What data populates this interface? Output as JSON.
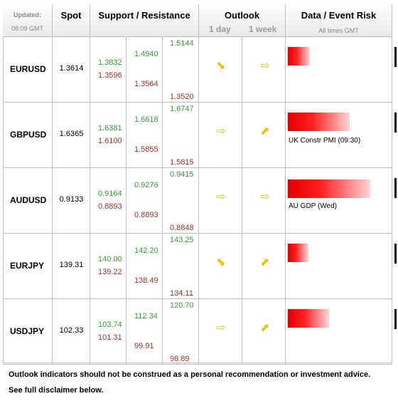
{
  "header": {
    "updated_label": "Updated:",
    "updated_time": "08:09 GMT",
    "spot": "Spot",
    "sr": "Support / Resistance",
    "outlook": "Outlook",
    "outlook_1d": "1 day",
    "outlook_1w": "1 week",
    "risk": "Data / Event Risk",
    "risk_sub": "All times GMT"
  },
  "rows": [
    {
      "pair": "EURUSD",
      "spot": "1.3614",
      "s1_hi": "1.3832",
      "s1_lo": "1.3596",
      "s2_hi": "1.4940",
      "s2_lo": "1.3564",
      "s3_hi": "1.5144",
      "s3_lo": "1.3520",
      "d1": "down-right-arrow",
      "w1": "right-arrow",
      "risk_level": 0.27,
      "risk_text": ""
    },
    {
      "pair": "GBPUSD",
      "spot": "1.6365",
      "s1_hi": "1.6381",
      "s1_lo": "1.6100",
      "s2_hi": "1.6618",
      "s2_lo": "1.5855",
      "s3_hi": "1.6747",
      "s3_lo": "1.5815",
      "d1": "right-arrow",
      "w1": "up-right-arrow",
      "risk_level": 0.75,
      "risk_text": "UK Constr PMI (09:30)"
    },
    {
      "pair": "AUDUSD",
      "spot": "0.9133",
      "s1_hi": "0.9164",
      "s1_lo": "0.8893",
      "s2_hi": "0.9276",
      "s2_lo": "0.8893",
      "s3_hi": "0.9415",
      "s3_lo": "0.8848",
      "d1": "right-arrow",
      "w1": "right-arrow",
      "risk_level": 1.0,
      "risk_text": "AU GDP (Wed)"
    },
    {
      "pair": "EURJPY",
      "spot": "139.31",
      "s1_hi": "140.00",
      "s1_lo": "139.22",
      "s2_hi": "142.20",
      "s2_lo": "138.49",
      "s3_hi": "143.25",
      "s3_lo": "134.11",
      "d1": "down-right-arrow",
      "w1": "up-right-arrow",
      "risk_level": 0.25,
      "risk_text": ""
    },
    {
      "pair": "USDJPY",
      "spot": "102.33",
      "s1_hi": "103.74",
      "s1_lo": "101.31",
      "s2_hi": "112.34",
      "s2_lo": "99.91",
      "s3_hi": "120.70",
      "s3_lo": "98.89",
      "d1": "right-arrow",
      "w1": "up-right-arrow",
      "risk_level": 0.5,
      "risk_text": ""
    }
  ],
  "footer": {
    "line1": "Outlook indicators should not be construed as a personal recommendation or investment advice.",
    "line2": "See full disclaimer below."
  }
}
